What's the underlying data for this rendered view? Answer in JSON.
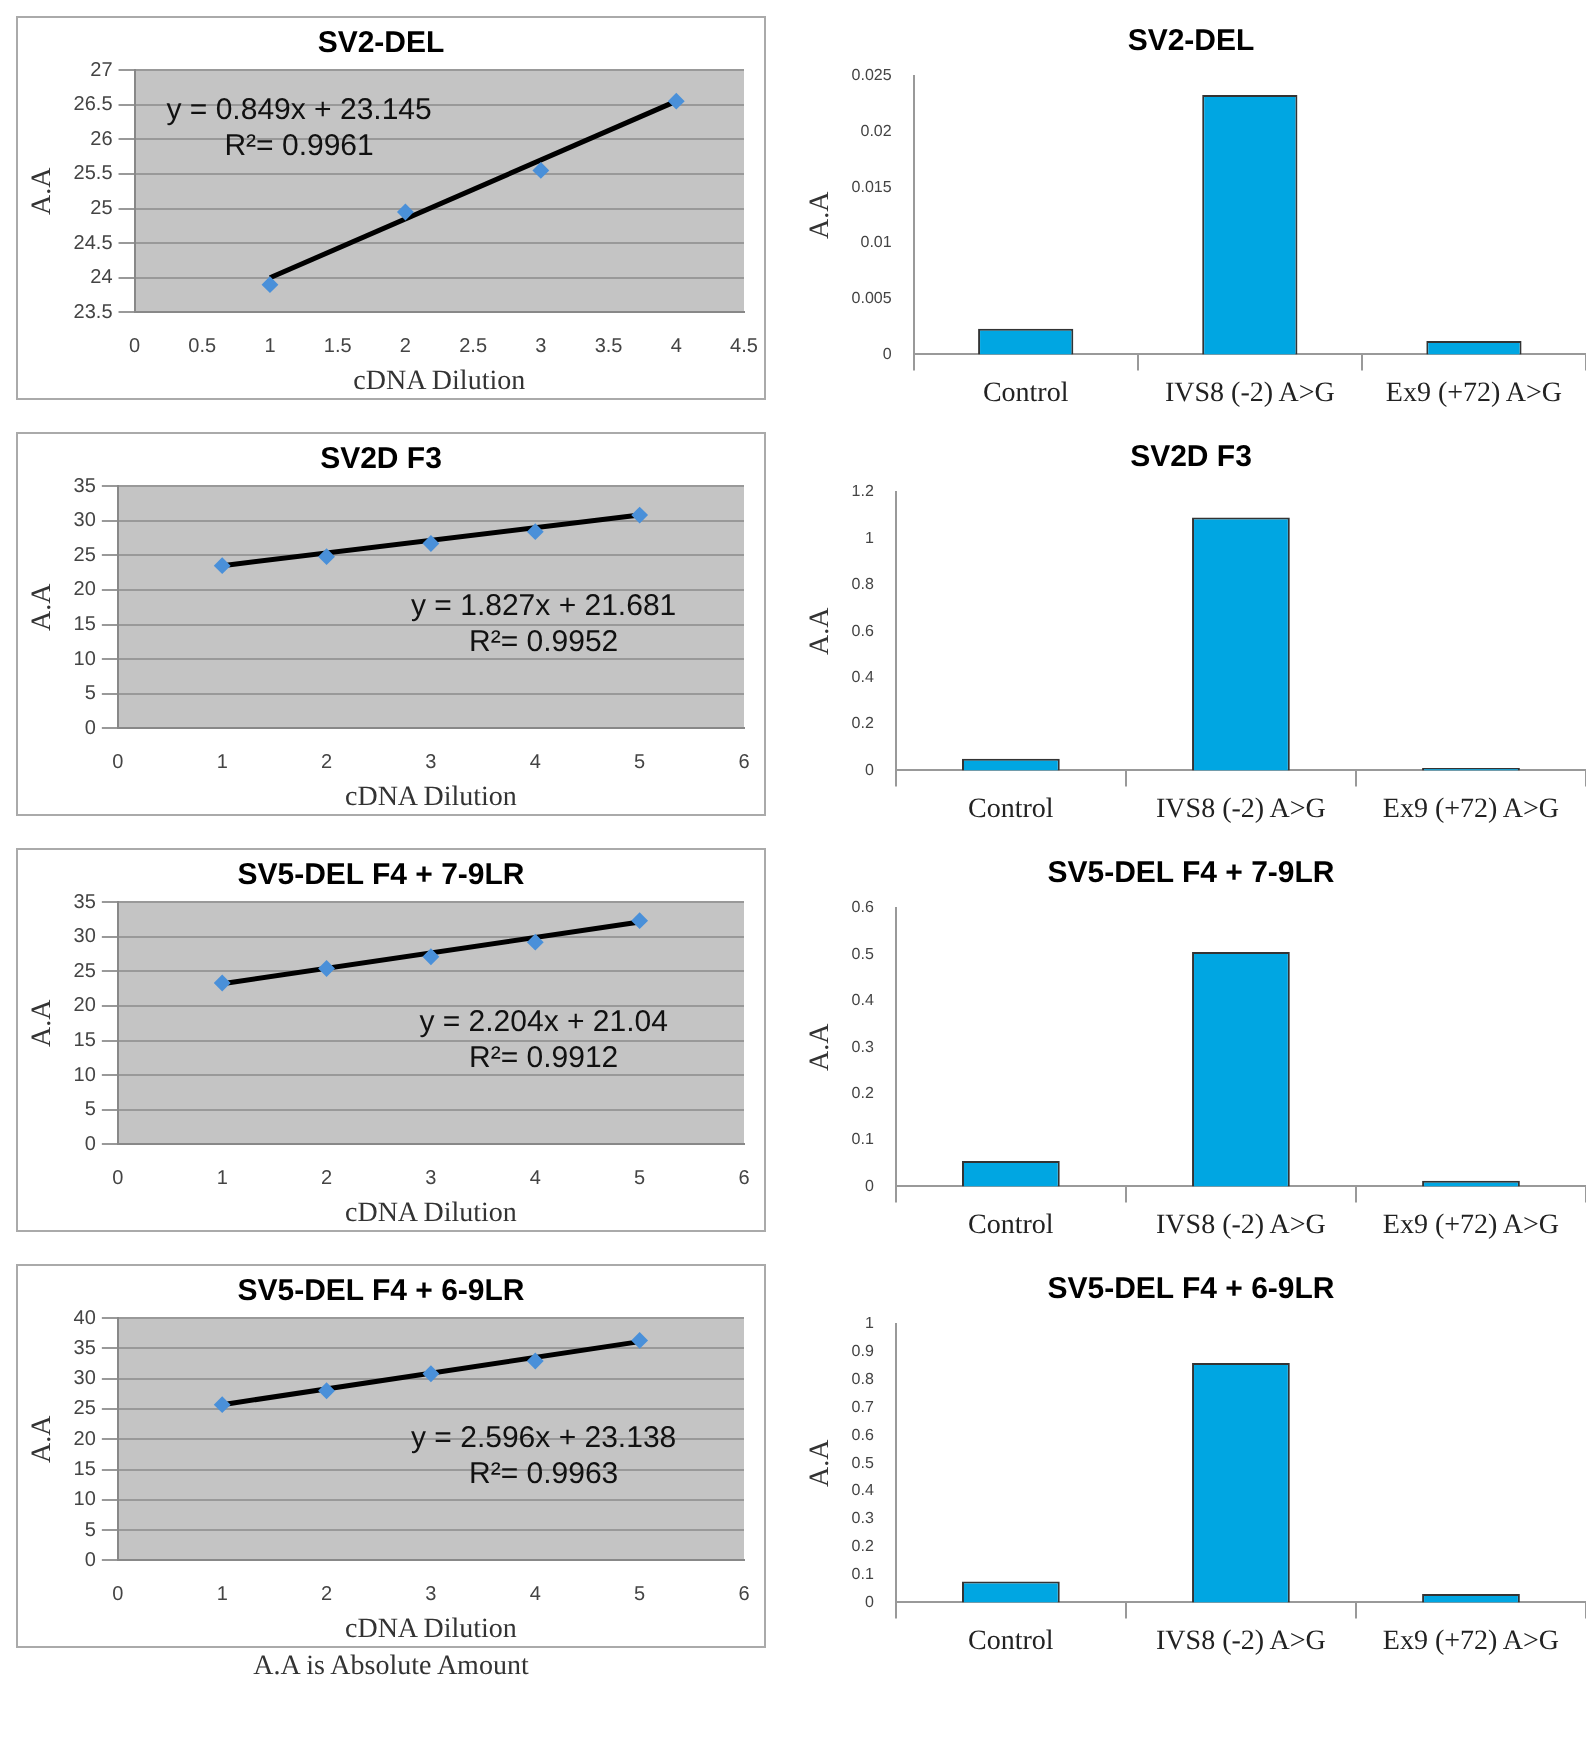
{
  "chart_data": [
    {
      "type": "scatter",
      "title": "SV2-DEL",
      "xlabel": "cDNA Dilution",
      "ylabel": "A.A",
      "xlim": [
        0,
        4.5
      ],
      "xticks": [
        0,
        0.5,
        1,
        1.5,
        2,
        2.5,
        3,
        3.5,
        4,
        4.5
      ],
      "ylim": [
        23.5,
        27
      ],
      "yticks": [
        23.5,
        24,
        24.5,
        25,
        25.5,
        26,
        26.5,
        27
      ],
      "grid": "y",
      "annotations": [
        "y = 0.849x + 23.145",
        "R²= 0.9961"
      ],
      "series": [
        {
          "type": "scatter",
          "marker": "diamond",
          "color": "#4a90d9",
          "x": [
            1,
            2,
            3,
            4
          ],
          "values": [
            23.9,
            24.95,
            25.55,
            26.55
          ]
        },
        {
          "type": "line",
          "marker": "none",
          "color": "#000000",
          "x": [
            1,
            4
          ],
          "values": [
            24.0,
            26.55
          ]
        }
      ]
    },
    {
      "type": "bar",
      "title": "SV2-DEL",
      "ylabel": "A.A",
      "categories": [
        "Control",
        "IVS8 (-2) A>G",
        "Ex9 (+72) A>G"
      ],
      "values": [
        0.0023,
        0.0233,
        0.0012
      ],
      "color": "#00a6e2",
      "ylim": [
        0,
        0.025
      ],
      "yticks": [
        0,
        0.005,
        0.01,
        0.015,
        0.02,
        0.025
      ]
    },
    {
      "type": "scatter",
      "title": "SV2D F3",
      "xlabel": "cDNA Dilution",
      "ylabel": "A.A",
      "xlim": [
        0,
        6
      ],
      "xticks": [
        0,
        1,
        2,
        3,
        4,
        5,
        6
      ],
      "ylim": [
        0,
        35
      ],
      "yticks": [
        0,
        5,
        10,
        15,
        20,
        25,
        30,
        35
      ],
      "grid": "y",
      "annotations": [
        "y = 1.827x + 21.681",
        "R²= 0.9952"
      ],
      "series": [
        {
          "type": "scatter",
          "marker": "diamond",
          "color": "#4a90d9",
          "x": [
            1,
            2,
            3,
            4,
            5
          ],
          "values": [
            23.5,
            24.8,
            26.7,
            28.4,
            30.8
          ]
        },
        {
          "type": "line",
          "marker": "none",
          "color": "#000000",
          "x": [
            1,
            5
          ],
          "values": [
            23.5,
            30.8
          ]
        }
      ]
    },
    {
      "type": "bar",
      "title": "SV2D F3",
      "ylabel": "A.A",
      "categories": [
        "Control",
        "IVS8 (-2) A>G",
        "Ex9 (+72) A>G"
      ],
      "values": [
        0.05,
        1.09,
        0.01
      ],
      "color": "#00a6e2",
      "ylim": [
        0,
        1.2
      ],
      "yticks": [
        0,
        0.2,
        0.4,
        0.6,
        0.8,
        1,
        1.2
      ]
    },
    {
      "type": "scatter",
      "title": "SV5-DEL F4 + 7-9LR",
      "xlabel": "cDNA Dilution",
      "ylabel": "A.A",
      "xlim": [
        0,
        6
      ],
      "xticks": [
        0,
        1,
        2,
        3,
        4,
        5,
        6
      ],
      "ylim": [
        0,
        35
      ],
      "yticks": [
        0,
        5,
        10,
        15,
        20,
        25,
        30,
        35
      ],
      "grid": "y",
      "annotations": [
        "y = 2.204x + 21.04",
        "R²= 0.9912"
      ],
      "series": [
        {
          "type": "scatter",
          "marker": "diamond",
          "color": "#4a90d9",
          "x": [
            1,
            2,
            3,
            4,
            5
          ],
          "values": [
            23.3,
            25.4,
            27.1,
            29.2,
            32.3
          ]
        },
        {
          "type": "line",
          "marker": "none",
          "color": "#000000",
          "x": [
            1,
            5
          ],
          "values": [
            23.2,
            32.1
          ]
        }
      ]
    },
    {
      "type": "bar",
      "title": "SV5-DEL F4 + 7-9LR",
      "ylabel": "A.A",
      "categories": [
        "Control",
        "IVS8 (-2) A>G",
        "Ex9 (+72) A>G"
      ],
      "values": [
        0.055,
        0.505,
        0.012
      ],
      "color": "#00a6e2",
      "ylim": [
        0,
        0.6
      ],
      "yticks": [
        0,
        0.1,
        0.2,
        0.3,
        0.4,
        0.5,
        0.6
      ]
    },
    {
      "type": "scatter",
      "title": "SV5-DEL F4 + 6-9LR",
      "xlabel": "cDNA Dilution",
      "ylabel": "A.A",
      "xlim": [
        0,
        6
      ],
      "xticks": [
        0,
        1,
        2,
        3,
        4,
        5,
        6
      ],
      "ylim": [
        0,
        40
      ],
      "yticks": [
        0,
        5,
        10,
        15,
        20,
        25,
        30,
        35,
        40
      ],
      "grid": "y",
      "annotations": [
        "y = 2.596x + 23.138",
        "R²= 0.9963",
        "A.A is Absolute Amount"
      ],
      "series": [
        {
          "type": "scatter",
          "marker": "diamond",
          "color": "#4a90d9",
          "x": [
            1,
            2,
            3,
            4,
            5
          ],
          "values": [
            25.7,
            28,
            30.8,
            32.9,
            36.3
          ]
        },
        {
          "type": "line",
          "marker": "none",
          "color": "#000000",
          "x": [
            1,
            5
          ],
          "values": [
            25.7,
            36.1
          ]
        }
      ]
    },
    {
      "type": "bar",
      "title": "SV5-DEL F4 + 6-9LR",
      "ylabel": "A.A",
      "categories": [
        "Control",
        "IVS8 (-2) A>G",
        "Ex9 (+72) A>G"
      ],
      "values": [
        0.075,
        0.86,
        0.03
      ],
      "color": "#00a6e2",
      "ylim": [
        0,
        1
      ],
      "yticks": [
        0,
        0.1,
        0.2,
        0.3,
        0.4,
        0.5,
        0.6,
        0.7,
        0.8,
        0.9,
        1
      ]
    }
  ]
}
